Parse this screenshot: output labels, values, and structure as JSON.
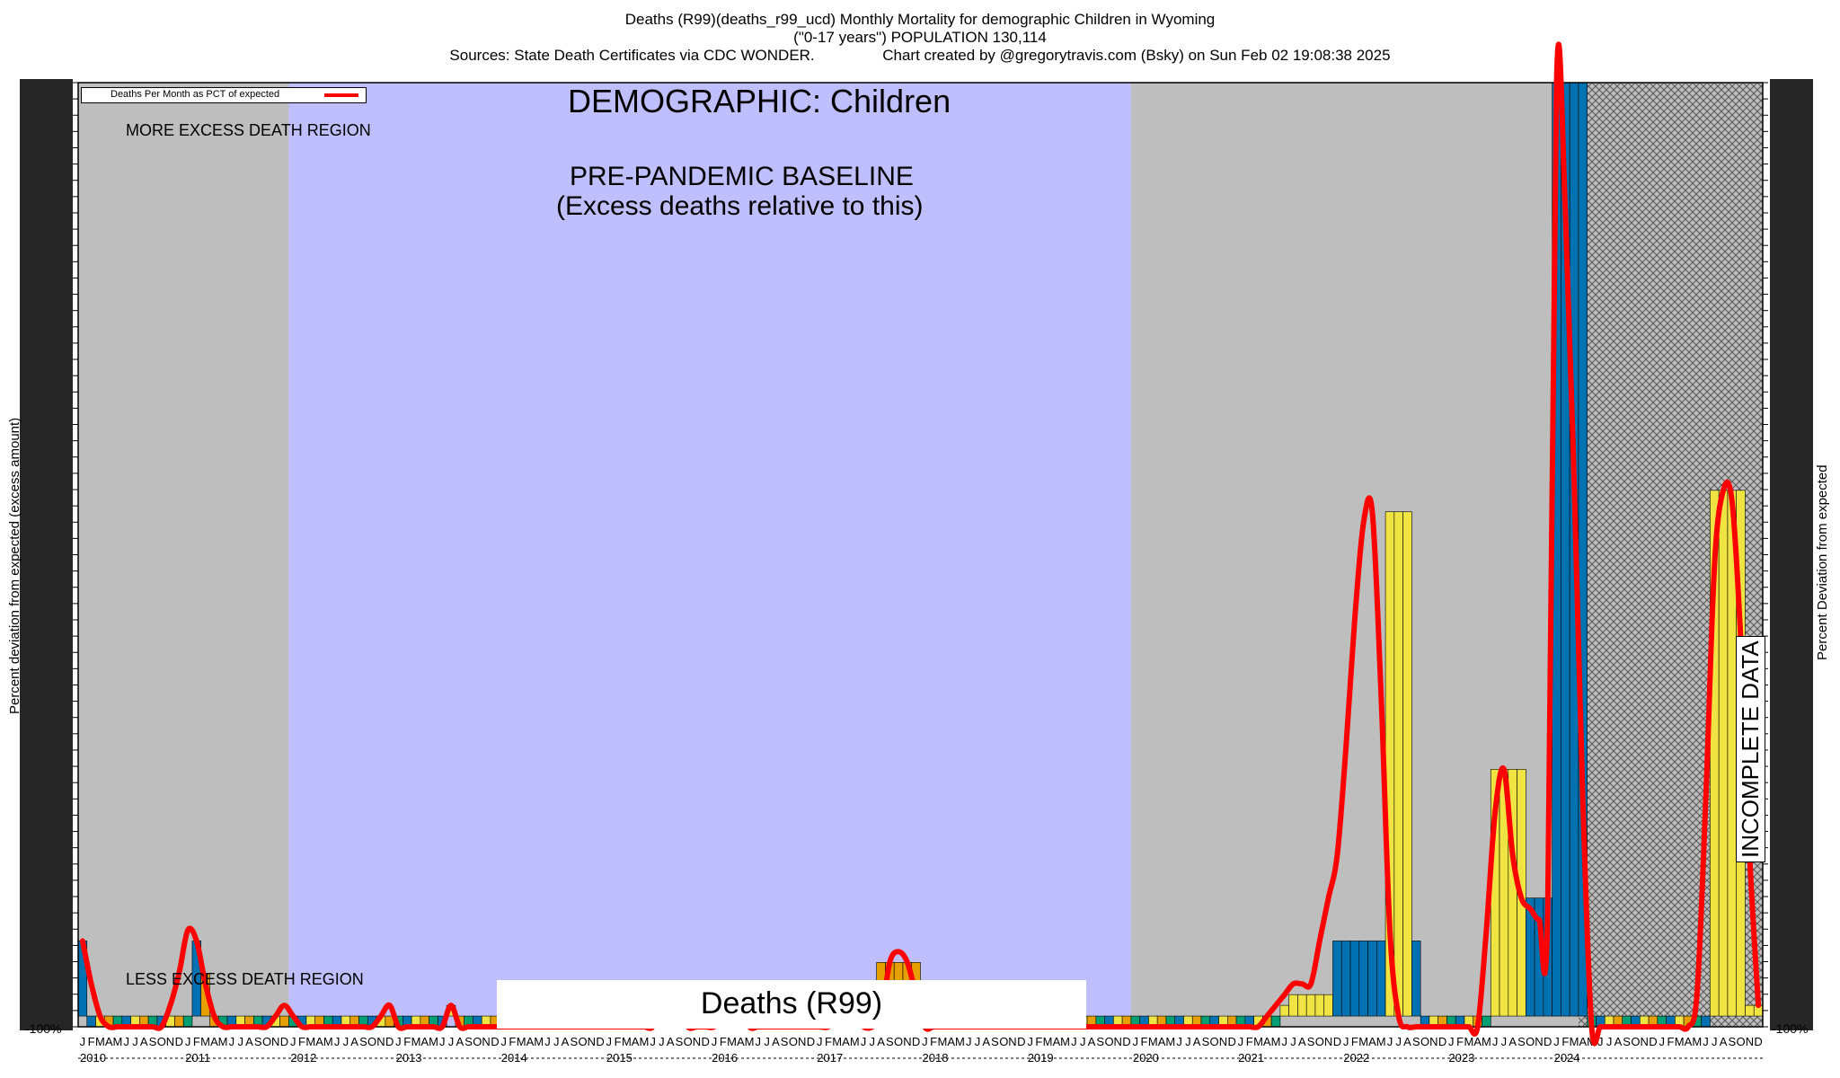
{
  "header": {
    "line1": "Deaths (R99)(deaths_r99_ucd) Monthly Mortality for demographic Children in Wyoming",
    "line2": "(\"0-17 years\") POPULATION 130,114",
    "line3": "Sources: State Death Certificates via CDC WONDER.                Chart created by @gregorytravis.com (Bsky) on Sun Feb 02 19:08:38 2025"
  },
  "legend": {
    "label": "Deaths Per Month as PCT of expected",
    "color": "#ff0000"
  },
  "annotations": {
    "demographic": "DEMOGRAPHIC: Children",
    "baseline_line1": "PRE-PANDEMIC BASELINE",
    "baseline_line2": "(Excess deaths relative to this)",
    "more_region": "MORE EXCESS DEATH REGION",
    "less_region": "LESS EXCESS DEATH REGION",
    "incomplete": "INCOMPLETE DATA",
    "footer": "Deaths (R99)"
  },
  "axes": {
    "left_label": "Percent deviation from expected (excess amount)",
    "right_label": "Percent Deviation from expected",
    "bottom_left_tick": "-100%",
    "bottom_right_tick": "-100%"
  },
  "colors": {
    "background_region": "#bebebe",
    "baseline_region": "#bfbffe",
    "incomplete_region": "#888888",
    "bar_yellow": "#f0e442",
    "bar_orange": "#e69f00",
    "bar_blue": "#0072b2",
    "bar_green": "#009e73",
    "curve": "#ff0000"
  },
  "chart_data": {
    "type": "bar",
    "title": "Deaths (R99)(deaths_r99_ucd) Monthly Mortality for demographic Children in Wyoming",
    "ylabel": "Percent deviation from expected (excess amount)",
    "ylim": [
      -100,
      8700
    ],
    "years": [
      "2010",
      "2011",
      "2012",
      "2013",
      "2014",
      "2015",
      "2016",
      "2017",
      "2018",
      "2019",
      "2020",
      "2021",
      "2022",
      "2023",
      "2024"
    ],
    "month_letters": [
      "J",
      "F",
      "M",
      "A",
      "M",
      "J",
      "J",
      "A",
      "S",
      "O",
      "N",
      "D"
    ],
    "baseline_years": [
      "2012",
      "2013",
      "2014",
      "2015",
      "2016",
      "2017",
      "2018",
      "2019"
    ],
    "incomplete_from": "2024-04",
    "values": [
      700,
      -100,
      -100,
      -100,
      -100,
      -100,
      -100,
      -100,
      -100,
      -100,
      -100,
      -100,
      -100,
      700,
      400,
      -100,
      -100,
      -100,
      -100,
      -100,
      -100,
      -100,
      -100,
      -100,
      -100,
      -100,
      -100,
      -100,
      -100,
      -100,
      -100,
      -100,
      -100,
      -100,
      -100,
      -100,
      -100,
      -100,
      -100,
      -100,
      -100,
      -100,
      100,
      -100,
      -100,
      -100,
      -100,
      -100,
      -100,
      -100,
      -100,
      -100,
      -100,
      -100,
      -100,
      -100,
      -100,
      -100,
      -100,
      -100,
      -100,
      -100,
      -100,
      -100,
      -100,
      -100,
      -100,
      -100,
      -100,
      -100,
      -100,
      -100,
      -100,
      -100,
      -100,
      -100,
      -100,
      -100,
      -100,
      -100,
      -100,
      -100,
      -100,
      -100,
      -100,
      -100,
      -100,
      -100,
      -100,
      -100,
      -100,
      500,
      500,
      500,
      500,
      500,
      -100,
      -100,
      -100,
      -100,
      -100,
      -100,
      -100,
      -100,
      -100,
      -100,
      -100,
      -100,
      -100,
      -100,
      -100,
      -100,
      -100,
      -100,
      -100,
      -100,
      -100,
      -100,
      -100,
      -100,
      -100,
      -100,
      -100,
      -100,
      -100,
      -100,
      -100,
      -100,
      -100,
      -100,
      -100,
      -100,
      -100,
      -100,
      -100,
      -100,
      -100,
      100,
      200,
      200,
      200,
      200,
      200,
      700,
      700,
      700,
      700,
      700,
      700,
      4700,
      4700,
      4700,
      700,
      -100,
      -100,
      -100,
      -100,
      -100,
      -100,
      -100,
      -100,
      2300,
      2300,
      2300,
      2300,
      1100,
      1100,
      1100,
      8700,
      8700,
      8700,
      8700,
      -100,
      -100,
      -100,
      -100,
      -100,
      -100,
      -100,
      -100,
      -100,
      -100,
      -100,
      -100,
      -100,
      -100,
      4900,
      4900,
      4900,
      4900,
      100,
      100
    ],
    "curve_values": [
      700,
      300,
      0,
      -100,
      -100,
      -100,
      -100,
      -100,
      -100,
      -100,
      100,
      400,
      800,
      700,
      300,
      0,
      -100,
      -100,
      -100,
      -100,
      -100,
      -100,
      0,
      100,
      0,
      -100,
      -100,
      -100,
      -100,
      -100,
      -100,
      -100,
      -100,
      -100,
      0,
      100,
      -100,
      -100,
      -100,
      -100,
      -100,
      -100,
      100,
      -100,
      -100,
      -100,
      -100,
      -100,
      -100,
      -100,
      -100,
      -100,
      -100,
      -100,
      -100,
      -100,
      -100,
      -100,
      -100,
      -100,
      -100,
      -100,
      -100,
      -100,
      -100,
      -100,
      100,
      200,
      100,
      -100,
      -100,
      -100,
      -100,
      0,
      200,
      100,
      -100,
      -100,
      -100,
      -100,
      -100,
      -100,
      -100,
      -100,
      -100,
      -100,
      0,
      200,
      0,
      -100,
      -100,
      0,
      500,
      600,
      500,
      200,
      -100,
      -100,
      -100,
      -100,
      -100,
      -100,
      -100,
      -100,
      -100,
      -100,
      -100,
      -100,
      -100,
      -100,
      -100,
      -100,
      -100,
      -100,
      -100,
      -100,
      -100,
      -100,
      -100,
      -100,
      -100,
      -100,
      -100,
      -100,
      -100,
      -100,
      -100,
      -100,
      -100,
      -100,
      -100,
      -100,
      -100,
      -100,
      -100,
      0,
      100,
      200,
      300,
      300,
      300,
      700,
      1100,
      1500,
      2500,
      3700,
      4600,
      4700,
      3000,
      800,
      0,
      -100,
      -100,
      -100,
      -100,
      -100,
      -100,
      -100,
      -100,
      -100,
      800,
      1900,
      2300,
      1500,
      1100,
      1000,
      900,
      1000,
      8700,
      7500,
      5000,
      2000,
      -100,
      -100,
      -100,
      -100,
      -100,
      -100,
      -100,
      -100,
      -100,
      -100,
      -100,
      -100,
      200,
      2000,
      4200,
      4900,
      4800,
      3500,
      1500,
      100
    ]
  }
}
